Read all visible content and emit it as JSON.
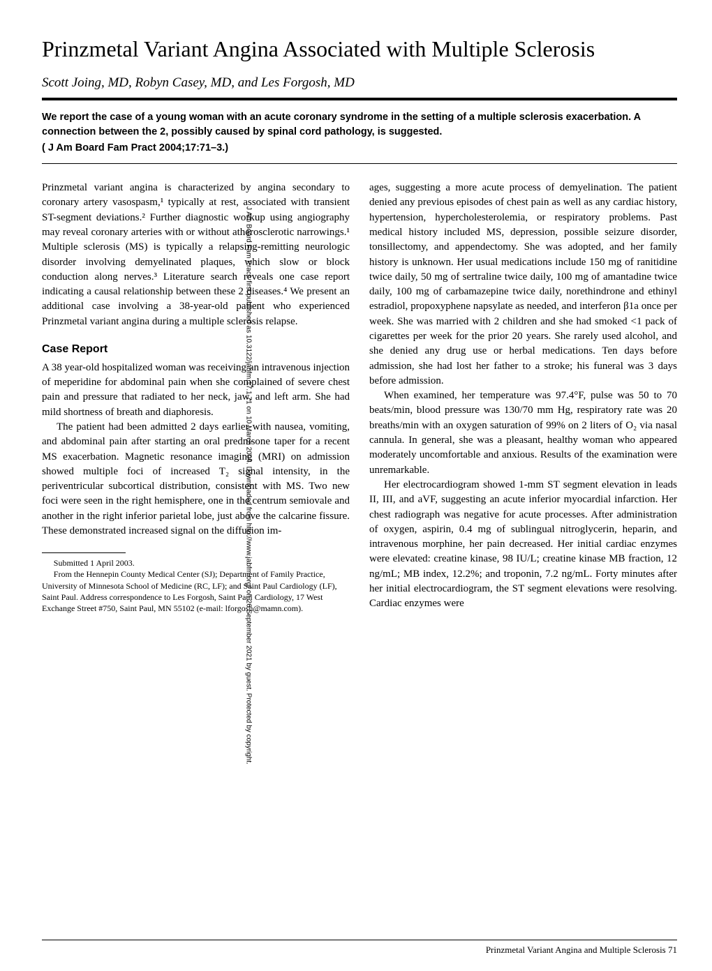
{
  "title": "Prinzmetal Variant Angina Associated with Multiple Sclerosis",
  "authors": "Scott Joing, MD, Robyn Casey, MD, and Les Forgosh, MD",
  "abstract": "We report the case of a young woman with an acute coronary syndrome in the setting of a multiple sclerosis exacerbation. A connection between the 2, possibly caused by spinal cord pathology, is suggested.",
  "citation": "( J Am Board Fam Pract 2004;17:71–3.)",
  "left_column": {
    "intro_p1": "Prinzmetal variant angina is characterized by angina secondary to coronary artery vasospasm,¹ typically at rest, associated with transient ST-segment deviations.² Further diagnostic workup using angiography may reveal coronary arteries with or without atherosclerotic narrowings.¹ Multiple sclerosis (MS) is typically a relapsing-remitting neurologic disorder involving demyelinated plaques, which slow or block conduction along nerves.³ Literature search reveals one case report indicating a causal relationship between these 2 diseases.⁴ We present an additional case involving a 38-year-old patient who experienced Prinzmetal variant angina during a multiple sclerosis relapse.",
    "section_heading": "Case Report",
    "case_p1": "A 38 year-old hospitalized woman was receiving an intravenous injection of meperidine for abdominal pain when she complained of severe chest pain and pressure that radiated to her neck, jaw, and left arm. She had mild shortness of breath and diaphoresis.",
    "case_p2": "The patient had been admitted 2 days earlier with nausea, vomiting, and abdominal pain after starting an oral prednisone taper for a recent MS exacerbation. Magnetic resonance imaging (MRI) on admission showed multiple foci of increased T₂ signal intensity, in the periventricular subcortical distribution, consistent with MS. Two new foci were seen in the right hemisphere, one in the centrum semiovale and another in the right inferior parietal lobe, just above the calcarine fissure. These demonstrated increased signal on the diffusion im-",
    "footnote_l1": "Submitted 1 April 2003.",
    "footnote_l2": "From the Hennepin County Medical Center (SJ); Department of Family Practice, University of Minnesota School of Medicine (RC, LF); and Saint Paul Cardiology (LF), Saint Paul. Address correspondence to Les Forgosh, Saint Paul Cardiology, 17 West Exchange Street #750, Saint Paul, MN 55102 (e-mail: lforgosh@mamn.com)."
  },
  "right_column": {
    "p1": "ages, suggesting a more acute process of demyelination. The patient denied any previous episodes of chest pain as well as any cardiac history, hypertension, hypercholesterolemia, or respiratory problems. Past medical history included MS, depression, possible seizure disorder, tonsillectomy, and appendectomy. She was adopted, and her family history is unknown. Her usual medications include 150 mg of ranitidine twice daily, 50 mg of sertraline twice daily, 100 mg of amantadine twice daily, 100 mg of carbamazepine twice daily, norethindrone and ethinyl estradiol, propoxyphene napsylate as needed, and interferon β1a once per week. She was married with 2 children and she had smoked <1 pack of cigarettes per week for the prior 20 years. She rarely used alcohol, and she denied any drug use or herbal medications. Ten days before admission, she had lost her father to a stroke; his funeral was 3 days before admission.",
    "p2": "When examined, her temperature was 97.4°F, pulse was 50 to 70 beats/min, blood pressure was 130/70 mm Hg, respiratory rate was 20 breaths/min with an oxygen saturation of 99% on 2 liters of O₂ via nasal cannula. In general, she was a pleasant, healthy woman who appeared moderately uncomfortable and anxious. Results of the examination were unremarkable.",
    "p3": "Her electrocardiogram showed 1-mm ST segment elevation in leads II, III, and aVF, suggesting an acute inferior myocardial infarction. Her chest radiograph was negative for acute processes. After administration of oxygen, aspirin, 0.4 mg of sublingual nitroglycerin, heparin, and intravenous morphine, her pain decreased. Her initial cardiac enzymes were elevated: creatine kinase, 98 IU/L; creatine kinase MB fraction, 12 ng/mL; MB index, 12.2%; and troponin, 7.2 ng/mL. Forty minutes after her initial electrocardiogram, the ST segment elevations were resolving. Cardiac enzymes were"
  },
  "sidebar": "J Am Board Fam Pract: first published as 10.3122/jabfm.17.1.71 on 10 March 2004. Downloaded from http://www.jabfm.org/ on 26 September 2021 by guest. Protected by copyright.",
  "footer": "Prinzmetal Variant Angina and Multiple Sclerosis   71"
}
